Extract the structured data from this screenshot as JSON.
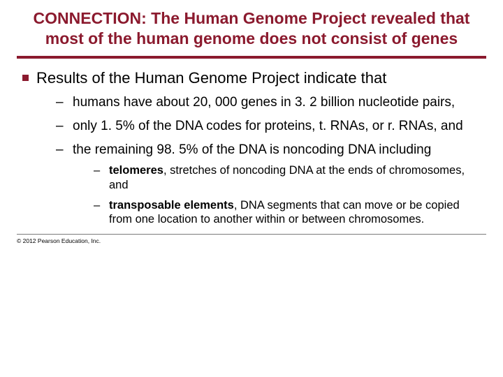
{
  "title_color": "#8b1a2e",
  "rule_color": "#8b1a2e",
  "bullet_color": "#8b1a2e",
  "title": "CONNECTION: The Human Genome Project revealed that most of the human genome does not consist of genes",
  "l1_0": "Results of the Human Genome Project indicate that",
  "l2_0": "humans have about 20, 000 genes in 3. 2 billion nucleotide pairs,",
  "l2_1": "only 1. 5% of the DNA codes for proteins, t. RNAs, or r. RNAs, and",
  "l2_2": "the remaining 98. 5% of the DNA is noncoding DNA including",
  "l3_0_bold": "telomeres",
  "l3_0_rest": ", stretches of noncoding DNA at the ends of chromosomes, and",
  "l3_1_bold": "transposable elements",
  "l3_1_rest": ", DNA segments that can move or be copied from one location to another within or between chromosomes.",
  "copyright": "© 2012 Pearson Education, Inc."
}
